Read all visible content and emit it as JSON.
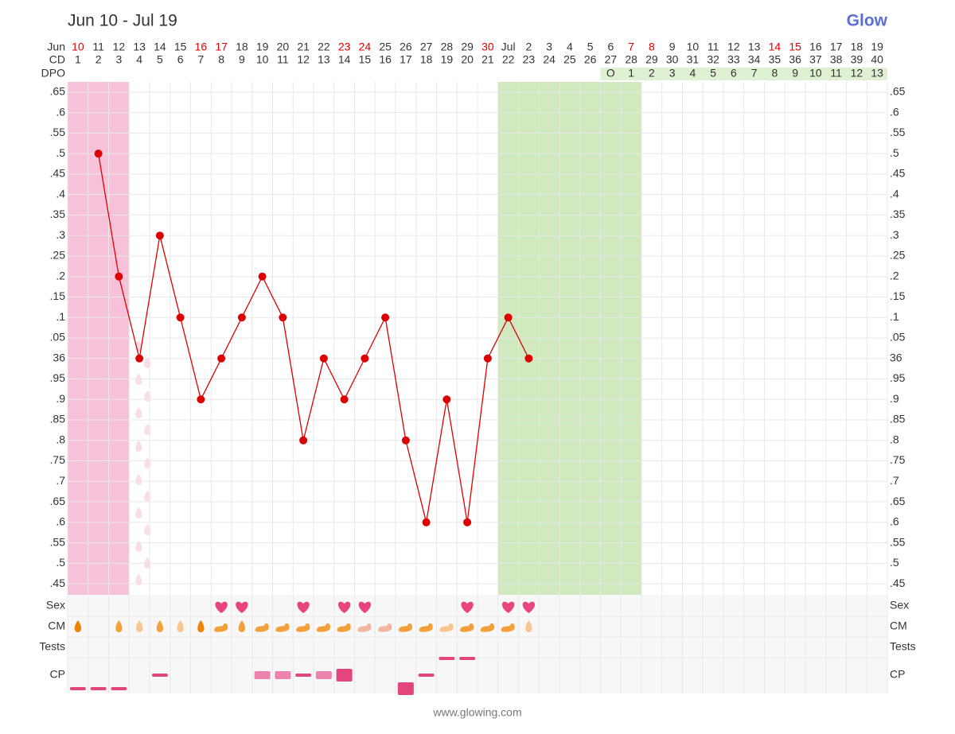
{
  "chart_data": {
    "type": "line",
    "title": "Jun 10 - Jul 19",
    "brand": "Glow",
    "footer": "www.glowing.com",
    "month_label": "Jun",
    "cd_label": "CD",
    "dpo_label": "DPO",
    "dates": [
      10,
      11,
      12,
      13,
      14,
      15,
      16,
      17,
      18,
      19,
      20,
      21,
      22,
      23,
      24,
      25,
      26,
      27,
      28,
      29,
      30,
      "Jul",
      2,
      3,
      4,
      5,
      6,
      7,
      8,
      9,
      10,
      11,
      12,
      13,
      14,
      15,
      16,
      17,
      18,
      19
    ],
    "highlight_cols": [
      0,
      6,
      7,
      13,
      14,
      20,
      27,
      28,
      34,
      35
    ],
    "highlight_color": "#e00000",
    "categories": [
      1,
      2,
      3,
      4,
      5,
      6,
      7,
      8,
      9,
      10,
      11,
      12,
      13,
      14,
      15,
      16,
      17,
      18,
      19,
      20,
      21,
      22,
      23,
      24,
      25,
      26,
      27,
      28,
      29,
      30,
      31,
      32,
      33,
      34,
      35,
      36,
      37,
      38,
      39,
      40
    ],
    "dpo": [
      null,
      null,
      null,
      null,
      null,
      null,
      null,
      null,
      null,
      null,
      null,
      null,
      null,
      null,
      null,
      null,
      null,
      null,
      null,
      null,
      null,
      null,
      null,
      null,
      null,
      null,
      "O",
      1,
      2,
      3,
      4,
      5,
      6,
      7,
      8,
      9,
      10,
      11,
      12,
      13
    ],
    "series": [
      {
        "name": "Temperature",
        "color": "#dd0000",
        "values": [
          null,
          36.5,
          36.2,
          36.0,
          36.3,
          36.1,
          35.9,
          36.0,
          36.1,
          36.2,
          36.1,
          35.8,
          36.0,
          35.9,
          36.0,
          36.1,
          35.8,
          35.6,
          35.9,
          35.6,
          36.0,
          36.1,
          36.0,
          null,
          null,
          null,
          null,
          null,
          null,
          null,
          null,
          null,
          null,
          null,
          null,
          null,
          null,
          null,
          null,
          null
        ]
      }
    ],
    "ylim": [
      35.423,
      36.675
    ],
    "yticks": [
      {
        "value": 36.65,
        "label": ".65"
      },
      {
        "value": 36.6,
        "label": ".6"
      },
      {
        "value": 36.55,
        "label": ".55"
      },
      {
        "value": 36.5,
        "label": ".5"
      },
      {
        "value": 36.45,
        "label": ".45"
      },
      {
        "value": 36.4,
        "label": ".4"
      },
      {
        "value": 36.35,
        "label": ".35"
      },
      {
        "value": 36.3,
        "label": ".3"
      },
      {
        "value": 36.25,
        "label": ".25"
      },
      {
        "value": 36.2,
        "label": ".2"
      },
      {
        "value": 36.15,
        "label": ".15"
      },
      {
        "value": 36.1,
        "label": ".1"
      },
      {
        "value": 36.05,
        "label": ".05"
      },
      36,
      {
        "value": 35.95,
        "label": ".95"
      },
      {
        "value": 35.9,
        "label": ".9"
      },
      {
        "value": 35.85,
        "label": ".85"
      },
      {
        "value": 35.8,
        "label": ".8"
      },
      {
        "value": 35.75,
        "label": ".75"
      },
      {
        "value": 35.7,
        "label": ".7"
      },
      {
        "value": 35.65,
        "label": ".65"
      },
      {
        "value": 35.6,
        "label": ".6"
      },
      {
        "value": 35.55,
        "label": ".55"
      },
      {
        "value": 35.5,
        "label": ".5"
      },
      {
        "value": 35.45,
        "label": ".45"
      }
    ],
    "grid": true,
    "period": [
      1,
      3
    ],
    "period_color": "#f7c1da",
    "spotting": [
      4,
      4
    ],
    "spotting_color": "#fbdde8",
    "fertile": [
      22,
      28
    ],
    "fertile_color": "#d0e9be",
    "rows": [
      "Sex",
      "CM",
      "Tests",
      "CP"
    ],
    "sex": [
      8,
      9,
      12,
      14,
      15,
      20,
      22,
      23
    ],
    "sex_color": "#e8457f",
    "cm": [
      {
        "day": 1,
        "kind": "drop",
        "color": "#ef8200"
      },
      {
        "day": 3,
        "kind": "drop",
        "color": "#f4a03a"
      },
      {
        "day": 4,
        "kind": "drop",
        "color": "#f8c68e"
      },
      {
        "day": 5,
        "kind": "drop",
        "color": "#f4a03a"
      },
      {
        "day": 6,
        "kind": "drop",
        "color": "#f8c68e"
      },
      {
        "day": 7,
        "kind": "drop",
        "color": "#ef8200"
      },
      {
        "day": 8,
        "kind": "blob",
        "color": "#f4a03a"
      },
      {
        "day": 9,
        "kind": "drop",
        "color": "#f4a03a"
      },
      {
        "day": 10,
        "kind": "blob",
        "color": "#f4a03a"
      },
      {
        "day": 11,
        "kind": "blob",
        "color": "#f4a03a"
      },
      {
        "day": 12,
        "kind": "blob",
        "color": "#f4a03a"
      },
      {
        "day": 13,
        "kind": "blob",
        "color": "#f4a03a"
      },
      {
        "day": 14,
        "kind": "blob",
        "color": "#f4a03a"
      },
      {
        "day": 15,
        "kind": "blob",
        "color": "#f3b5a0"
      },
      {
        "day": 16,
        "kind": "blob",
        "color": "#f3b5a0"
      },
      {
        "day": 17,
        "kind": "blob",
        "color": "#f4a03a"
      },
      {
        "day": 18,
        "kind": "blob",
        "color": "#f4a03a"
      },
      {
        "day": 19,
        "kind": "blob",
        "color": "#f8c68e"
      },
      {
        "day": 20,
        "kind": "blob",
        "color": "#f4a03a"
      },
      {
        "day": 21,
        "kind": "blob",
        "color": "#f4a03a"
      },
      {
        "day": 22,
        "kind": "blob",
        "color": "#f4a03a"
      },
      {
        "day": 23,
        "kind": "drop",
        "color": "#f8c68e"
      }
    ],
    "cp": [
      {
        "day": 1,
        "level": "low",
        "size": 1,
        "color": "#e3467d"
      },
      {
        "day": 2,
        "level": "low",
        "size": 1,
        "color": "#e3467d"
      },
      {
        "day": 3,
        "level": "low",
        "size": 1,
        "color": "#e3467d"
      },
      {
        "day": 5,
        "level": "mid",
        "size": 1,
        "color": "#e3467d"
      },
      {
        "day": 10,
        "level": "mid",
        "size": 2,
        "color": "#ec82ad"
      },
      {
        "day": 11,
        "level": "mid",
        "size": 2,
        "color": "#ec82ad"
      },
      {
        "day": 12,
        "level": "mid",
        "size": 1,
        "color": "#e3467d"
      },
      {
        "day": 13,
        "level": "mid",
        "size": 2,
        "color": "#ec82ad"
      },
      {
        "day": 14,
        "level": "mid",
        "size": 3,
        "color": "#e3467d"
      },
      {
        "day": 17,
        "level": "low",
        "size": 3,
        "color": "#e3467d"
      },
      {
        "day": 18,
        "level": "mid",
        "size": 1,
        "color": "#e3467d"
      },
      {
        "day": 19,
        "level": "high",
        "size": 1,
        "color": "#e3467d"
      },
      {
        "day": 20,
        "level": "high",
        "size": 1,
        "color": "#e3467d"
      }
    ]
  }
}
